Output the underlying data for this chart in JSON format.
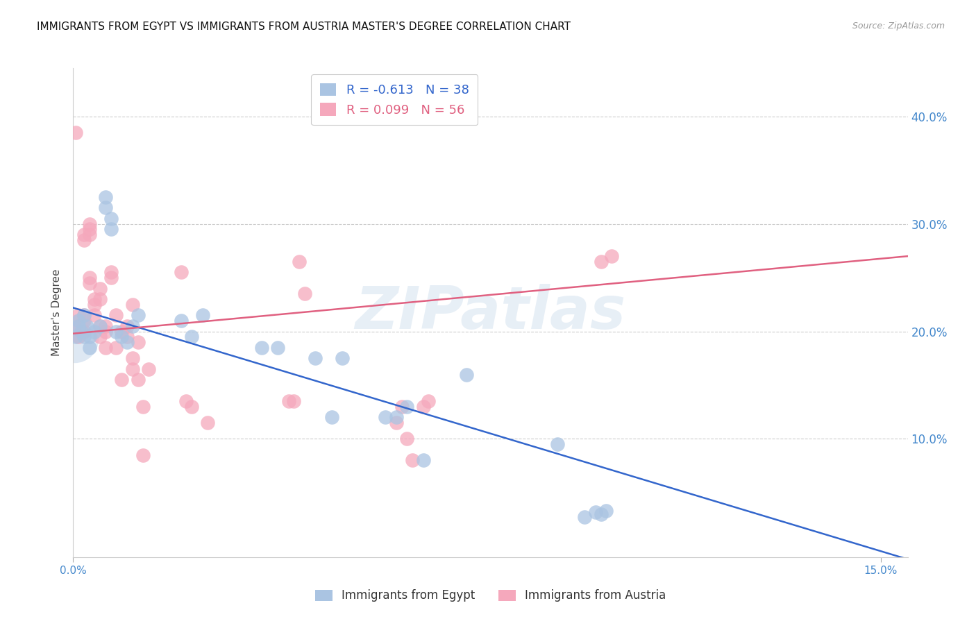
{
  "title": "IMMIGRANTS FROM EGYPT VS IMMIGRANTS FROM AUSTRIA MASTER'S DEGREE CORRELATION CHART",
  "source": "Source: ZipAtlas.com",
  "ylabel": "Master's Degree",
  "right_ytick_labels": [
    "40.0%",
    "30.0%",
    "20.0%",
    "10.0%"
  ],
  "right_ytick_values": [
    0.4,
    0.3,
    0.2,
    0.1
  ],
  "xlim": [
    0.0,
    0.155
  ],
  "ylim": [
    -0.01,
    0.445
  ],
  "legend_label_egypt": "Immigrants from Egypt",
  "legend_label_austria": "Immigrants from Austria",
  "egypt_color": "#aac4e2",
  "austria_color": "#f5a8bc",
  "egypt_line_color": "#3366cc",
  "austria_line_color": "#e06080",
  "egypt_R": -0.613,
  "egypt_N": 38,
  "austria_R": 0.099,
  "austria_N": 56,
  "title_fontsize": 11,
  "axis_label_fontsize": 11,
  "tick_fontsize": 11,
  "watermark": "ZIPatlas",
  "egypt_x": [
    0.0005,
    0.001,
    0.001,
    0.0015,
    0.002,
    0.002,
    0.0025,
    0.003,
    0.003,
    0.004,
    0.005,
    0.006,
    0.006,
    0.007,
    0.007,
    0.008,
    0.009,
    0.01,
    0.011,
    0.012,
    0.02,
    0.022,
    0.024,
    0.035,
    0.038,
    0.045,
    0.048,
    0.05,
    0.058,
    0.06,
    0.062,
    0.065,
    0.073,
    0.09,
    0.095,
    0.097,
    0.098,
    0.099
  ],
  "egypt_y": [
    0.195,
    0.21,
    0.205,
    0.2,
    0.215,
    0.195,
    0.205,
    0.185,
    0.195,
    0.2,
    0.205,
    0.315,
    0.325,
    0.295,
    0.305,
    0.2,
    0.195,
    0.19,
    0.205,
    0.215,
    0.21,
    0.195,
    0.215,
    0.185,
    0.185,
    0.175,
    0.12,
    0.175,
    0.12,
    0.12,
    0.13,
    0.08,
    0.16,
    0.095,
    0.027,
    0.032,
    0.03,
    0.033
  ],
  "austria_x": [
    0.0005,
    0.001,
    0.001,
    0.001,
    0.002,
    0.002,
    0.002,
    0.002,
    0.002,
    0.003,
    0.003,
    0.003,
    0.003,
    0.003,
    0.004,
    0.004,
    0.004,
    0.005,
    0.005,
    0.005,
    0.005,
    0.006,
    0.006,
    0.006,
    0.007,
    0.007,
    0.008,
    0.008,
    0.009,
    0.009,
    0.01,
    0.01,
    0.011,
    0.011,
    0.011,
    0.012,
    0.012,
    0.013,
    0.013,
    0.014,
    0.02,
    0.021,
    0.022,
    0.025,
    0.04,
    0.041,
    0.042,
    0.043,
    0.06,
    0.061,
    0.062,
    0.063,
    0.065,
    0.066,
    0.098,
    0.1
  ],
  "austria_y": [
    0.385,
    0.195,
    0.205,
    0.215,
    0.2,
    0.21,
    0.215,
    0.285,
    0.29,
    0.29,
    0.295,
    0.3,
    0.25,
    0.245,
    0.215,
    0.225,
    0.23,
    0.195,
    0.205,
    0.23,
    0.24,
    0.185,
    0.2,
    0.205,
    0.25,
    0.255,
    0.215,
    0.185,
    0.155,
    0.2,
    0.195,
    0.205,
    0.165,
    0.175,
    0.225,
    0.155,
    0.19,
    0.085,
    0.13,
    0.165,
    0.255,
    0.135,
    0.13,
    0.115,
    0.135,
    0.135,
    0.265,
    0.235,
    0.115,
    0.13,
    0.1,
    0.08,
    0.13,
    0.135,
    0.265,
    0.27
  ],
  "egypt_line_x": [
    0.0,
    0.155
  ],
  "egypt_line_y": [
    0.222,
    -0.012
  ],
  "austria_line_x": [
    0.0,
    0.155
  ],
  "austria_line_y": [
    0.198,
    0.27
  ]
}
